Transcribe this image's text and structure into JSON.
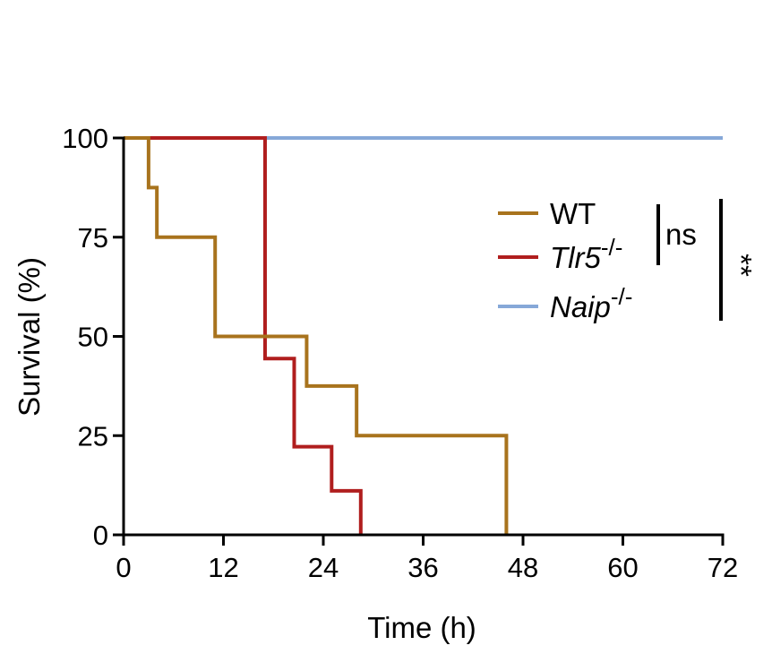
{
  "chart_data": {
    "type": "line",
    "step": true,
    "title": "",
    "xlabel": "Time (h)",
    "ylabel": "Survival (%)",
    "xlim": [
      0,
      72
    ],
    "ylim": [
      0,
      100
    ],
    "xticks": [
      0,
      12,
      24,
      36,
      48,
      60,
      72
    ],
    "yticks": [
      0,
      25,
      50,
      75,
      100
    ],
    "xtick_labels": [
      "0",
      "12",
      "24",
      "36",
      "48",
      "60",
      "72"
    ],
    "ytick_labels": [
      "0",
      "25",
      "50",
      "75",
      "100"
    ],
    "grid": false,
    "legend_position": "right",
    "series": [
      {
        "name": "WT",
        "name_base": "WT",
        "name_sup": "",
        "name_italic": false,
        "color": "#a8731d",
        "x": [
          0,
          3,
          4,
          11,
          22,
          28,
          46
        ],
        "y": [
          100,
          87.5,
          75,
          50,
          37.5,
          25,
          0
        ]
      },
      {
        "name": "Tlr5-/-",
        "name_base": "Tlr5",
        "name_sup": "-/-",
        "name_italic": true,
        "color": "#b01e1e",
        "x": [
          0,
          17,
          20.5,
          25,
          28.5
        ],
        "y": [
          100,
          44.4,
          22.2,
          11.1,
          0
        ]
      },
      {
        "name": "Naip-/-",
        "name_base": "Naip",
        "name_sup": "-/-",
        "name_italic": true,
        "color": "#86a8d8",
        "x": [
          0,
          72
        ],
        "y": [
          100,
          100
        ]
      }
    ],
    "significance": [
      {
        "label": "ns",
        "between": [
          "WT",
          "Tlr5-/-"
        ]
      },
      {
        "label": "**",
        "between": [
          "WT",
          "Naip-/-"
        ]
      }
    ]
  }
}
